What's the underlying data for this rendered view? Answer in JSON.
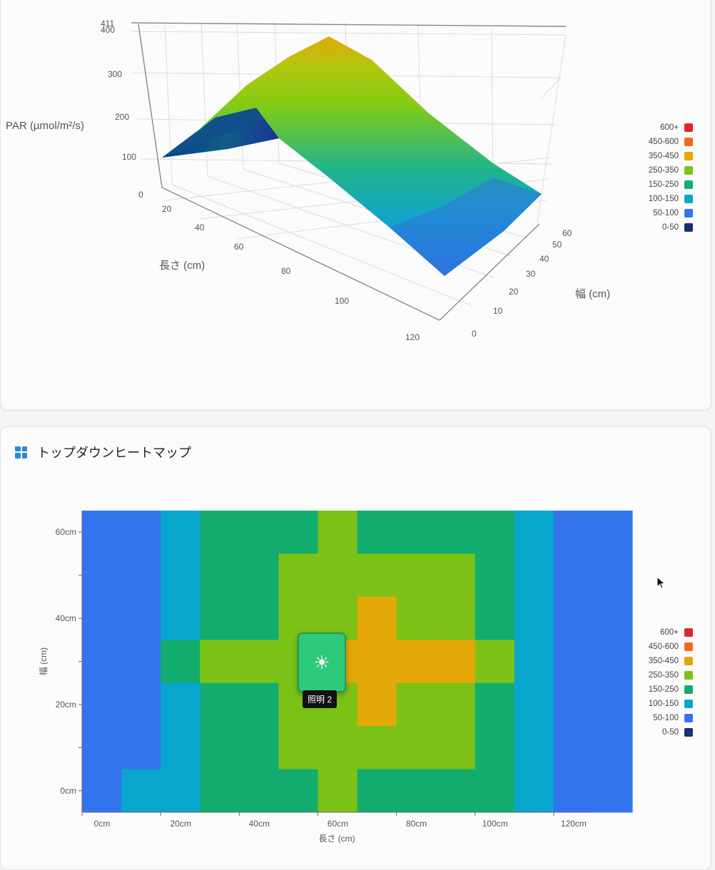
{
  "colors": {
    "600+": "#d62b2b",
    "450-600": "#ef6a17",
    "350-450": "#e3a708",
    "250-350": "#7cc116",
    "150-250": "#12ad6e",
    "100-150": "#08a6cc",
    "50-100": "#3274ee",
    "0-50": "#17306e"
  },
  "legend": [
    {
      "label": "600+",
      "color": "#d62b2b"
    },
    {
      "label": "450-600",
      "color": "#ef6a17"
    },
    {
      "label": "350-450",
      "color": "#e3a708"
    },
    {
      "label": "250-350",
      "color": "#7cc116"
    },
    {
      "label": "150-250",
      "color": "#12ad6e"
    },
    {
      "label": "100-150",
      "color": "#08a6cc"
    },
    {
      "label": "50-100",
      "color": "#3274ee"
    },
    {
      "label": "0-50",
      "color": "#17306e"
    }
  ],
  "surface_chart": {
    "type": "surface3d",
    "z_axis": {
      "label": "PAR (µmol/m²/s)",
      "ticks": [
        "411",
        "400",
        "300",
        "200",
        "100",
        "0"
      ]
    },
    "x_axis": {
      "label": "長さ (cm)",
      "ticks": [
        "20",
        "40",
        "60",
        "80",
        "100",
        "120"
      ]
    },
    "y_axis": {
      "label": "幅 (cm)",
      "ticks": [
        "0",
        "10",
        "20",
        "30",
        "40",
        "50",
        "60"
      ]
    }
  },
  "heatmap_card": {
    "title": "トップダウンヒートマップ",
    "title_icon": "grid-icon"
  },
  "chart_data": {
    "type": "heatmap",
    "xlabel": "長さ (cm)",
    "ylabel": "幅 (cm)",
    "x_ticks": [
      "0cm",
      "20cm",
      "40cm",
      "60cm",
      "80cm",
      "100cm",
      "120cm"
    ],
    "y_ticks": [
      "60cm",
      "40cm",
      "20cm",
      "0cm"
    ],
    "xlim": [
      0,
      130
    ],
    "ylim": [
      -5,
      65
    ],
    "cell_size_cm": [
      10,
      10
    ],
    "rows_top_to_bottom": [
      [
        "50-100",
        "50-100",
        "100-150",
        "150-250",
        "150-250",
        "150-250",
        "250-350",
        "150-250",
        "150-250",
        "150-250",
        "150-250",
        "100-150",
        "50-100",
        "50-100"
      ],
      [
        "50-100",
        "50-100",
        "100-150",
        "150-250",
        "150-250",
        "250-350",
        "250-350",
        "250-350",
        "250-350",
        "250-350",
        "150-250",
        "100-150",
        "50-100",
        "50-100"
      ],
      [
        "50-100",
        "50-100",
        "100-150",
        "150-250",
        "150-250",
        "250-350",
        "250-350",
        "350-450",
        "250-350",
        "250-350",
        "150-250",
        "100-150",
        "50-100",
        "50-100"
      ],
      [
        "50-100",
        "50-100",
        "150-250",
        "250-350",
        "250-350",
        "250-350",
        "350-450",
        "350-450",
        "350-450",
        "350-450",
        "250-350",
        "100-150",
        "50-100",
        "50-100"
      ],
      [
        "50-100",
        "50-100",
        "100-150",
        "150-250",
        "150-250",
        "250-350",
        "250-350",
        "350-450",
        "250-350",
        "250-350",
        "150-250",
        "100-150",
        "50-100",
        "50-100"
      ],
      [
        "50-100",
        "50-100",
        "100-150",
        "150-250",
        "150-250",
        "250-350",
        "250-350",
        "250-350",
        "250-350",
        "250-350",
        "150-250",
        "100-150",
        "50-100",
        "50-100"
      ],
      [
        "50-100",
        "100-150",
        "100-150",
        "150-250",
        "150-250",
        "150-250",
        "250-350",
        "150-250",
        "150-250",
        "150-250",
        "150-250",
        "100-150",
        "50-100",
        "50-100"
      ]
    ]
  },
  "fixture": {
    "icon": "sun-icon",
    "glyph": "☀",
    "label": "照明 2"
  }
}
